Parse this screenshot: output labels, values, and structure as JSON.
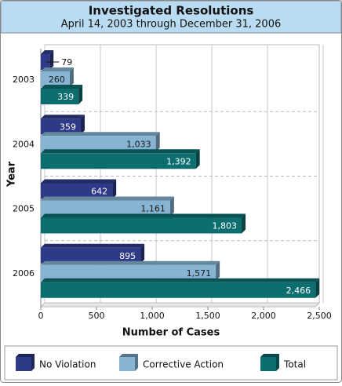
{
  "chart_data": {
    "type": "bar",
    "orientation": "horizontal",
    "title": "Investigated Resolutions",
    "subtitle": "April 14, 2003 through December 31, 2006",
    "x_label": "Number of Cases",
    "y_label": "Year",
    "categories": [
      "2003",
      "2004",
      "2005",
      "2006"
    ],
    "series": [
      {
        "name": "No Violation",
        "color": "#2e3a87",
        "values": [
          79,
          359,
          642,
          895
        ],
        "value_labels": [
          "79",
          "359",
          "642",
          "895"
        ]
      },
      {
        "name": "Corrective Action",
        "color": "#86b4d2",
        "values": [
          260,
          1033,
          1161,
          1571
        ],
        "value_labels": [
          "260",
          "1,033",
          "1,161",
          "1,571"
        ]
      },
      {
        "name": "Total",
        "color": "#0d6e70",
        "values": [
          339,
          1392,
          1803,
          2466
        ],
        "value_labels": [
          "339",
          "1,392",
          "1,803",
          "2,466"
        ]
      }
    ],
    "xlim": [
      0,
      2500
    ],
    "xticks": [
      0,
      500,
      {
        "value": 1000,
        "label": "1,000"
      },
      {
        "value": 1500,
        "label": "1,500"
      },
      {
        "value": 2000,
        "label": "2,000"
      },
      {
        "value": 2500,
        "label": "2,500"
      }
    ],
    "grid": true,
    "legend": "bottom"
  }
}
